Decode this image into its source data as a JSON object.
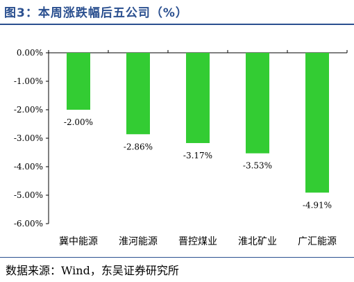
{
  "title": "图3：本周涨跌幅后五公司（%）",
  "source": "数据来源：Wind，东吴证券研究所",
  "colors": {
    "bar": "#33cc33",
    "axis": "#000000",
    "title": "#2a4f8f"
  },
  "chart_data": {
    "type": "bar",
    "title": "图3：本周涨跌幅后五公司（%）",
    "categories": [
      "冀中能源",
      "淮河能源",
      "晋控煤业",
      "淮北矿业",
      "广汇能源"
    ],
    "values": [
      -2.0,
      -2.86,
      -3.17,
      -3.53,
      -4.91
    ],
    "data_labels": [
      "-2.00%",
      "-2.86%",
      "-3.17%",
      "-3.53%",
      "-4.91%"
    ],
    "ylim": [
      -6,
      0
    ],
    "yticks": [
      0,
      -1,
      -2,
      -3,
      -4,
      -5,
      -6
    ],
    "ytick_labels": [
      "0.00%",
      "-1.00%",
      "-2.00%",
      "-3.00%",
      "-4.00%",
      "-5.00%",
      "-6.00%"
    ],
    "xlabel": "",
    "ylabel": "",
    "grid": false,
    "legend": "none"
  }
}
